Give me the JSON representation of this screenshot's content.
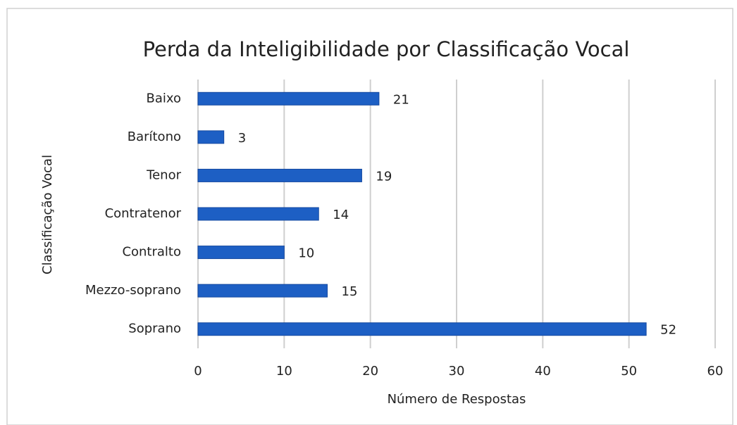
{
  "chart_data": {
    "type": "barh",
    "title": "Perda da Inteligibilidade por Classificação Vocal",
    "categories": [
      "Baixo",
      "Barítono",
      "Tenor",
      "Contratenor",
      "Contralto",
      "Mezzo-soprano",
      "Soprano"
    ],
    "values": [
      21,
      3,
      19,
      14,
      10,
      15,
      52
    ],
    "color": "#1d5fc4",
    "xlim": [
      0,
      60
    ],
    "xticks": [
      0,
      10,
      20,
      30,
      40,
      50,
      60
    ],
    "grid": true,
    "xlabel": "Número de Respostas",
    "ylabel": "Classificação Vocal"
  }
}
